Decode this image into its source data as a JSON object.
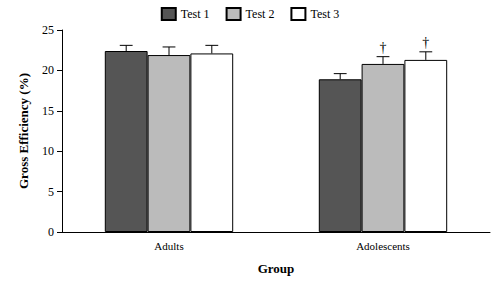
{
  "chart_data": {
    "type": "bar",
    "categories": [
      "Adults",
      "Adolescents"
    ],
    "x_label": "Group",
    "y_label": "Gross Efficiency (%)",
    "ylim": [
      0,
      25
    ],
    "yticks": [
      0,
      5,
      10,
      15,
      20,
      25
    ],
    "grid": false,
    "legend": "top",
    "series": [
      {
        "name": "Test 1",
        "color": "#555555",
        "values": [
          22.4,
          18.9
        ],
        "errors": [
          0.7,
          0.7
        ]
      },
      {
        "name": "Test 2",
        "color": "#bbbbbb",
        "values": [
          21.9,
          20.8
        ],
        "errors": [
          1.0,
          0.9
        ]
      },
      {
        "name": "Test 3",
        "color": "#ffffff",
        "values": [
          22.1,
          21.3
        ],
        "errors": [
          1.0,
          1.0
        ]
      }
    ],
    "annotations": [
      {
        "series": "Test 2",
        "category": "Adolescents",
        "text": "†"
      },
      {
        "series": "Test 3",
        "category": "Adolescents",
        "text": "†"
      }
    ]
  }
}
